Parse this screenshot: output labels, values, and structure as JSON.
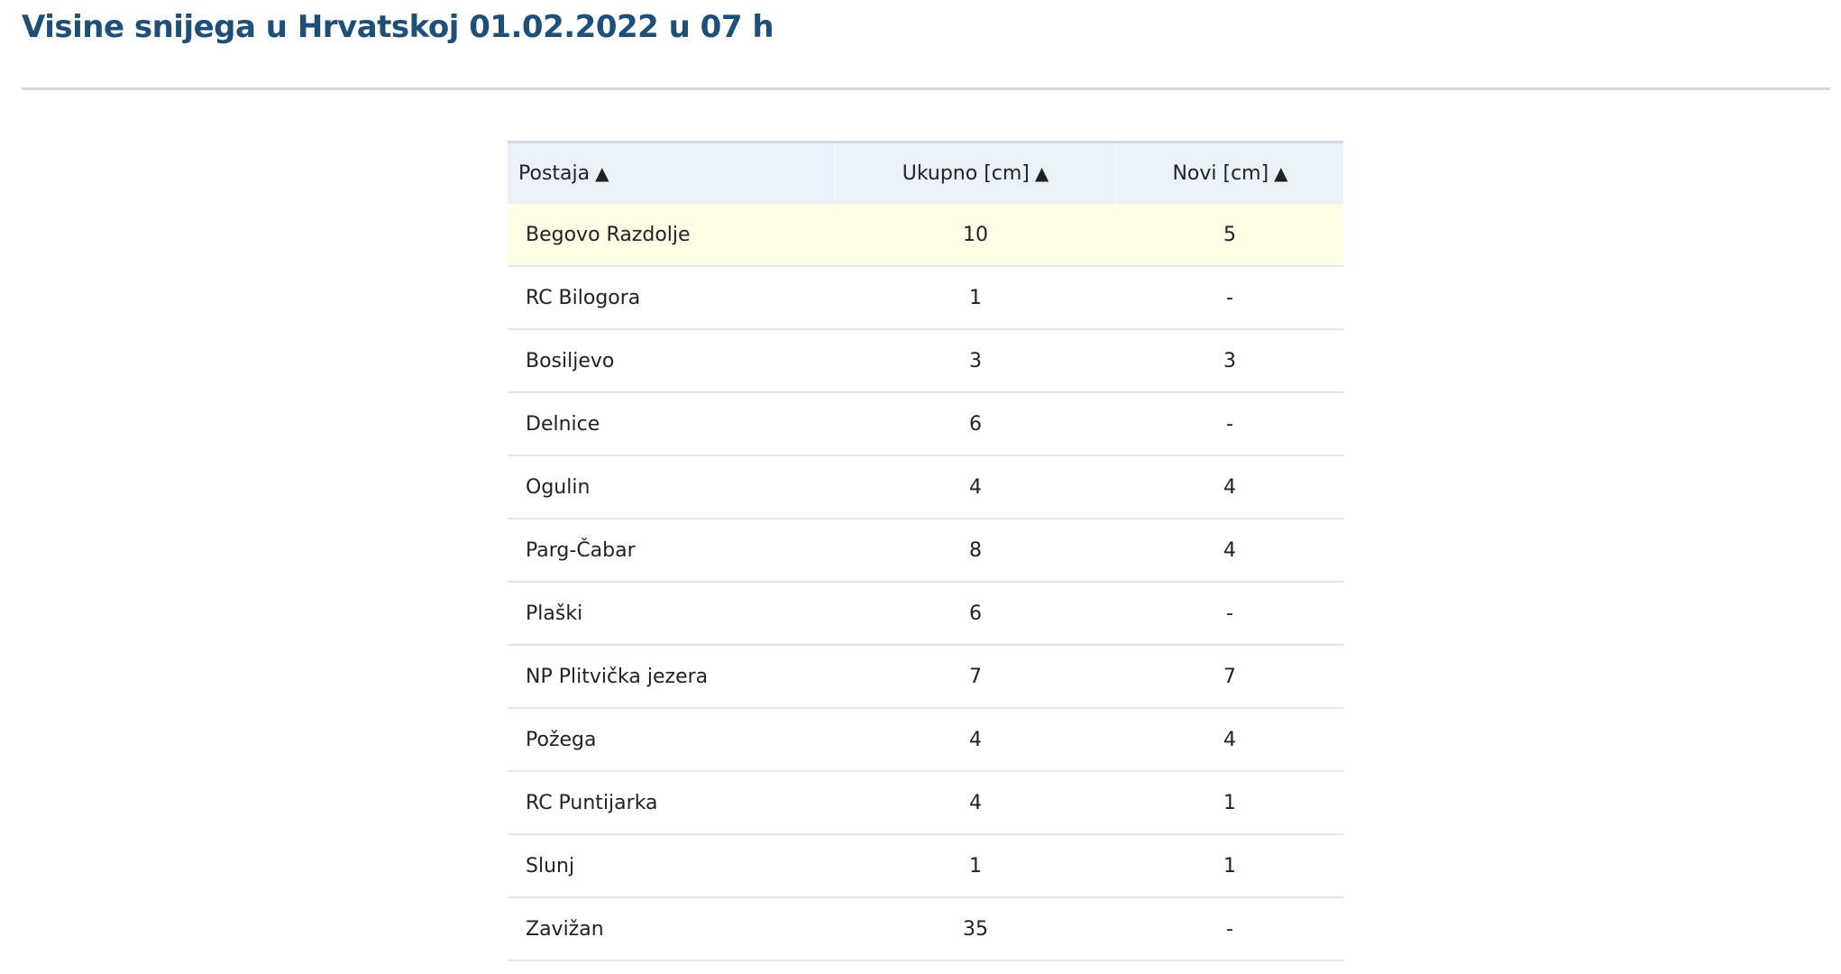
{
  "title": "Visine snijega u Hrvatskoj 01.02.2022 u 07 h",
  "table": {
    "headers": [
      {
        "label": "Postaja",
        "sort_icon": "▲"
      },
      {
        "label": "Ukupno [cm]",
        "sort_icon": "▲"
      },
      {
        "label": "Novi [cm]",
        "sort_icon": "▲"
      }
    ],
    "rows": [
      [
        "Begovo Razdolje",
        "10",
        "5"
      ],
      [
        "RC Bilogora",
        "1",
        "-"
      ],
      [
        "Bosiljevo",
        "3",
        "3"
      ],
      [
        "Delnice",
        "6",
        "-"
      ],
      [
        "Ogulin",
        "4",
        "4"
      ],
      [
        "Parg-Čabar",
        "8",
        "4"
      ],
      [
        "Plaški",
        "6",
        "-"
      ],
      [
        "NP Plitvička jezera",
        "7",
        "7"
      ],
      [
        "Požega",
        "4",
        "4"
      ],
      [
        "RC Puntijarka",
        "4",
        "1"
      ],
      [
        "Slunj",
        "1",
        "1"
      ],
      [
        "Zavižan",
        "35",
        "-"
      ]
    ],
    "highlighted_row": 0
  },
  "colors": {
    "title": "#1d4f78",
    "header_bg": "#eaf1f8",
    "highlight_bg": "#fffde6"
  }
}
